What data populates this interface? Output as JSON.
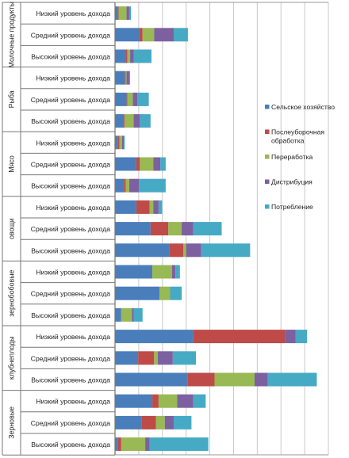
{
  "chart_data": {
    "type": "bar",
    "orientation": "horizontal",
    "stacked": true,
    "grid": true,
    "legend_position": "right",
    "x_range": [
      0,
      24
    ],
    "groups": [
      {
        "name": "Молочные продукты",
        "name_lines": [
          "Молочные продукты"
        ],
        "categories": [
          "Низкий уровень дохода",
          "Средний уровень дохода",
          "Высокий уровень дохода"
        ]
      },
      {
        "name": "Рыба",
        "name_lines": [
          "Рыба"
        ],
        "categories": [
          "Низкий уровень дохода",
          "Средний уровень дохода",
          "Высокий уровень дохода"
        ]
      },
      {
        "name": "Мясо",
        "name_lines": [
          "Мясо"
        ],
        "categories": [
          "Низкий уровень дохода",
          "Средний уровень дохода",
          "Высокий уровень дохода"
        ]
      },
      {
        "name": "овощи",
        "name_lines": [
          "овощи"
        ],
        "categories": [
          "Низкий уровень дохода",
          "Средний уровень дохода",
          "Высокий уровень дохода"
        ]
      },
      {
        "name": "зернобобовые",
        "name_lines": [
          "зернобобовые"
        ],
        "categories": [
          "Низкий уровень дохода",
          "Средний уровень дохода",
          "Высокий уровень дохода"
        ]
      },
      {
        "name": "клубнеплоды",
        "name_lines": [
          "клубнеплоды"
        ],
        "categories": [
          "Низкий уровень дохода",
          "Средний уровень дохода",
          "Высокий уровень дохода"
        ]
      },
      {
        "name": "Зерновые",
        "name_lines": [
          "Зерновые"
        ],
        "categories": [
          "Низкий уровень дохода",
          "Средний уровень дохода",
          "Высокий уровень дохода"
        ]
      }
    ],
    "series": [
      {
        "name": "Сельское хозяйство",
        "name_lines": [
          "Сельское хозяйство"
        ],
        "color": "#4a7ebb",
        "values": [
          0.3,
          2.7,
          1.2,
          1.1,
          1.3,
          1.0,
          0.3,
          2.4,
          1.0,
          2.4,
          4.0,
          6.1,
          4.2,
          5.0,
          0.7,
          8.8,
          2.6,
          8.2,
          4.2,
          3.0,
          0.3
        ]
      },
      {
        "name": "Послеуборочная обработка",
        "name_lines": [
          "Послеуборочная",
          "обработка"
        ],
        "color": "#be4b48",
        "values": [
          0.1,
          0.4,
          0.2,
          0.1,
          0.1,
          0.1,
          0.2,
          0.4,
          0.2,
          1.5,
          2.0,
          1.6,
          0.0,
          0.0,
          0.0,
          10.3,
          1.8,
          3.0,
          0.7,
          1.6,
          0.4
        ]
      },
      {
        "name": "Переработка",
        "name_lines": [
          "Переработка"
        ],
        "color": "#98b954",
        "values": [
          0.9,
          1.3,
          0.3,
          0.1,
          0.6,
          1.0,
          0.3,
          1.5,
          0.4,
          0.4,
          1.5,
          0.3,
          2.2,
          1.2,
          1.2,
          0.0,
          0.4,
          4.5,
          2.1,
          1.0,
          2.7
        ]
      },
      {
        "name": "Дистрибуция",
        "name_lines": [
          "Дистрибуция"
        ],
        "color": "#7d60a0",
        "values": [
          0.3,
          2.2,
          0.4,
          0.3,
          0.5,
          0.7,
          0.2,
          0.8,
          1.1,
          0.6,
          1.3,
          1.7,
          0.4,
          0.0,
          0.2,
          1.2,
          1.7,
          1.5,
          1.8,
          1.0,
          0.5
        ]
      },
      {
        "name": "Потребление",
        "name_lines": [
          "Потребление"
        ],
        "color": "#46aac5",
        "values": [
          0.2,
          1.6,
          2.0,
          0.1,
          1.3,
          1.2,
          0.1,
          0.6,
          3.0,
          0.4,
          3.2,
          5.5,
          0.5,
          1.3,
          1.0,
          1.3,
          2.6,
          5.5,
          1.4,
          2.0,
          6.6
        ]
      }
    ]
  }
}
